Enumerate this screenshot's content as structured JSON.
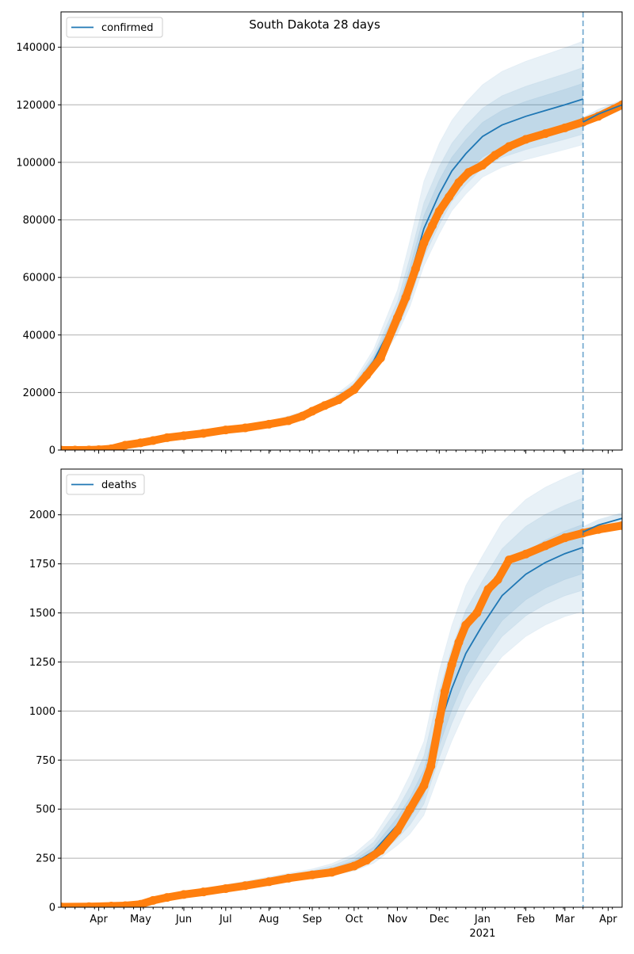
{
  "colors": {
    "model": "#1f77b4",
    "observed": "#ff7f0e",
    "grid": "#b0b0b0"
  },
  "chart_data": [
    {
      "type": "line",
      "title": "South Dakota 28 days",
      "legend": {
        "label": "confirmed",
        "placement": "top-left"
      },
      "xlim": [
        "2020-03-05",
        "2021-04-11"
      ],
      "ylim": [
        0,
        152300
      ],
      "yticks": [
        0,
        20000,
        40000,
        60000,
        80000,
        100000,
        120000,
        140000
      ],
      "ytick_labels": [
        "0",
        "20000",
        "40000",
        "60000",
        "80000",
        "100000",
        "120000",
        "140000"
      ],
      "grid": "y",
      "forecast_date": "2021-03-14",
      "model": {
        "dates": [
          "2020-03-05",
          "2020-04-01",
          "2020-05-01",
          "2020-06-01",
          "2020-07-01",
          "2020-08-01",
          "2020-09-01",
          "2020-09-15",
          "2020-10-01",
          "2020-10-15",
          "2020-11-01",
          "2020-11-10",
          "2020-11-20",
          "2020-12-01",
          "2020-12-10",
          "2020-12-20",
          "2021-01-01",
          "2021-01-15",
          "2021-02-01",
          "2021-02-15",
          "2021-03-01",
          "2021-03-14"
        ],
        "values": [
          0,
          150,
          2500,
          5000,
          7200,
          9300,
          13500,
          16800,
          22000,
          31000,
          47000,
          60000,
          77000,
          89000,
          97000,
          103000,
          109000,
          113000,
          116000,
          118000,
          120000,
          122000
        ],
        "spread": [
          0.3,
          0.3,
          0.3,
          0.3,
          0.3,
          0.35,
          0.4,
          0.5,
          0.6,
          0.8,
          1.1,
          1.3,
          1.3,
          1.2,
          1.1,
          1.05,
          1.0,
          1.0,
          1.0,
          1.0,
          1.0,
          1.0
        ],
        "bands": [
          {
            "level": "outer",
            "upper_k": 0.165,
            "lower_k": 0.13
          },
          {
            "level": "middle",
            "upper_k": 0.09,
            "lower_k": 0.1
          },
          {
            "level": "inner",
            "upper_k": 0.045,
            "lower_k": 0.066
          }
        ]
      },
      "projection": {
        "dates": [
          "2021-03-14",
          "2021-03-25",
          "2021-04-11"
        ],
        "values": [
          114000,
          116800,
          120000
        ],
        "spread": 0.015
      },
      "observed": {
        "dates": [
          "2020-03-05",
          "2020-03-15",
          "2020-03-25",
          "2020-04-01",
          "2020-04-10",
          "2020-04-20",
          "2020-05-01",
          "2020-05-10",
          "2020-05-20",
          "2020-06-01",
          "2020-06-15",
          "2020-07-01",
          "2020-07-15",
          "2020-08-01",
          "2020-08-15",
          "2020-08-25",
          "2020-09-01",
          "2020-09-10",
          "2020-09-20",
          "2020-10-01",
          "2020-10-10",
          "2020-10-20",
          "2020-11-01",
          "2020-11-07",
          "2020-11-14",
          "2020-11-20",
          "2020-11-26",
          "2020-12-01",
          "2020-12-08",
          "2020-12-15",
          "2020-12-22",
          "2021-01-01",
          "2021-01-10",
          "2021-01-20",
          "2021-02-01",
          "2021-02-15",
          "2021-03-01",
          "2021-03-14",
          "2021-03-25",
          "2021-04-11"
        ],
        "values": [
          0,
          10,
          40,
          130,
          450,
          1700,
          2500,
          3300,
          4300,
          5000,
          5800,
          7000,
          7700,
          9000,
          10200,
          11800,
          13500,
          15500,
          17500,
          21000,
          26000,
          32000,
          46000,
          53000,
          63000,
          72000,
          78000,
          83000,
          88000,
          93000,
          96500,
          99000,
          102500,
          105500,
          108000,
          110000,
          112000,
          114000,
          116000,
          120000
        ]
      }
    },
    {
      "type": "line",
      "title": "",
      "legend": {
        "label": "deaths",
        "placement": "top-left"
      },
      "xlim": [
        "2020-03-05",
        "2021-04-11"
      ],
      "ylim": [
        0,
        2233
      ],
      "yticks": [
        0,
        250,
        500,
        750,
        1000,
        1250,
        1500,
        1750,
        2000
      ],
      "ytick_labels": [
        "0",
        "250",
        "500",
        "750",
        "1000",
        "1250",
        "1500",
        "1750",
        "2000"
      ],
      "xticks": [
        "2020-04-01",
        "2020-05-01",
        "2020-06-01",
        "2020-07-01",
        "2020-08-01",
        "2020-09-01",
        "2020-10-01",
        "2020-11-01",
        "2020-12-01",
        "2021-01-01",
        "2021-02-01",
        "2021-03-01",
        "2021-04-01"
      ],
      "xtick_labels": [
        "Apr",
        "May",
        "Jun",
        "Jul",
        "Aug",
        "Sep",
        "Oct",
        "Nov",
        "Dec",
        "Jan",
        "Feb",
        "Mar",
        "Apr"
      ],
      "xtick_year_label": "2021",
      "grid": "y",
      "forecast_date": "2021-03-14",
      "model": {
        "dates": [
          "2020-03-05",
          "2020-04-01",
          "2020-05-01",
          "2020-06-01",
          "2020-07-01",
          "2020-08-01",
          "2020-09-01",
          "2020-09-15",
          "2020-10-01",
          "2020-10-15",
          "2020-11-01",
          "2020-11-10",
          "2020-11-20",
          "2020-12-01",
          "2020-12-10",
          "2020-12-20",
          "2021-01-01",
          "2021-01-15",
          "2021-02-01",
          "2021-02-15",
          "2021-03-01",
          "2021-03-14"
        ],
        "values": [
          3,
          5,
          18,
          70,
          100,
          135,
          170,
          190,
          225,
          285,
          420,
          510,
          640,
          920,
          1115,
          1293,
          1438,
          1588,
          1697,
          1757,
          1802,
          1834
        ],
        "spread": [
          8,
          5,
          1.5,
          0.7,
          0.7,
          0.7,
          0.7,
          0.8,
          1.0,
          1.2,
          1.4,
          1.5,
          1.5,
          1.45,
          1.35,
          1.25,
          1.15,
          1.1,
          1.05,
          1.02,
          1.0,
          1.0
        ],
        "bands": [
          {
            "level": "outer",
            "upper_k": 0.214,
            "lower_k": 0.178
          },
          {
            "level": "middle",
            "upper_k": 0.137,
            "lower_k": 0.119
          },
          {
            "level": "inner",
            "upper_k": 0.064,
            "lower_k": 0.073
          }
        ]
      },
      "projection": {
        "dates": [
          "2021-03-14",
          "2021-03-25",
          "2021-04-11"
        ],
        "values": [
          1912,
          1948,
          1982
        ],
        "spread": 0.015
      },
      "observed": {
        "dates": [
          "2020-03-05",
          "2020-03-25",
          "2020-04-10",
          "2020-04-20",
          "2020-05-01",
          "2020-05-10",
          "2020-05-20",
          "2020-06-01",
          "2020-06-15",
          "2020-07-01",
          "2020-07-15",
          "2020-08-01",
          "2020-08-15",
          "2020-09-01",
          "2020-09-15",
          "2020-10-01",
          "2020-10-10",
          "2020-10-20",
          "2020-11-01",
          "2020-11-10",
          "2020-11-20",
          "2020-11-25",
          "2020-12-01",
          "2020-12-05",
          "2020-12-10",
          "2020-12-15",
          "2020-12-20",
          "2020-12-28",
          "2021-01-05",
          "2021-01-12",
          "2021-01-20",
          "2021-02-01",
          "2021-02-15",
          "2021-03-01",
          "2021-03-14",
          "2021-03-25",
          "2021-04-11"
        ],
        "values": [
          2,
          3,
          6,
          8,
          15,
          35,
          50,
          65,
          78,
          95,
          110,
          130,
          148,
          165,
          178,
          210,
          240,
          290,
          390,
          500,
          620,
          720,
          950,
          1100,
          1236,
          1350,
          1438,
          1500,
          1620,
          1670,
          1770,
          1800,
          1842,
          1883,
          1907,
          1925,
          1945
        ]
      }
    }
  ]
}
